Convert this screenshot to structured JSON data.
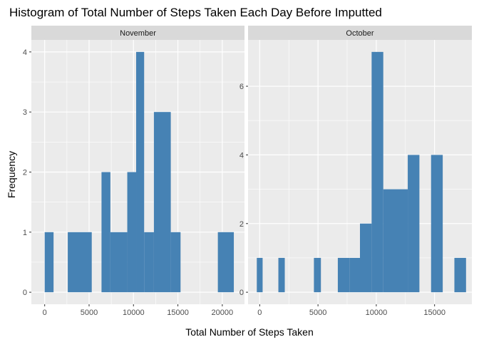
{
  "chart_data": {
    "type": "bar",
    "title": "Histogram of Total Number of Steps Taken Each Day Before Imputted",
    "xlabel": "Total Number of Steps Taken",
    "ylabel": "Frequency",
    "bar_color": "#4682B4",
    "panel_bg": "#EBEBEB",
    "strip_bg": "#D9D9D9",
    "grid_color": "#FFFFFF",
    "grid": true,
    "legend": "none",
    "panels": [
      {
        "name": "November",
        "xlim": [
          -1500,
          22500
        ],
        "ylim": [
          -0.2,
          4.2
        ],
        "x_ticks": [
          0,
          5000,
          10000,
          15000,
          20000
        ],
        "y_ticks": [
          0,
          1,
          2,
          3,
          4
        ],
        "bins": [
          {
            "x0": 0,
            "x1": 1000,
            "count": 1
          },
          {
            "x0": 2600,
            "x1": 5300,
            "count": 1
          },
          {
            "x0": 6400,
            "x1": 7400,
            "count": 2
          },
          {
            "x0": 7400,
            "x1": 9300,
            "count": 1
          },
          {
            "x0": 9300,
            "x1": 10300,
            "count": 2
          },
          {
            "x0": 10300,
            "x1": 11200,
            "count": 4
          },
          {
            "x0": 11200,
            "x1": 12300,
            "count": 1
          },
          {
            "x0": 12300,
            "x1": 14200,
            "count": 3
          },
          {
            "x0": 14200,
            "x1": 15300,
            "count": 1
          },
          {
            "x0": 19500,
            "x1": 21300,
            "count": 1
          }
        ]
      },
      {
        "name": "October",
        "xlim": [
          -1000,
          18200
        ],
        "ylim": [
          -0.35,
          7.35
        ],
        "x_ticks": [
          0,
          5000,
          10000,
          15000
        ],
        "y_ticks": [
          0,
          2,
          4,
          6
        ],
        "bins": [
          {
            "x0": -250,
            "x1": 250,
            "count": 1
          },
          {
            "x0": 1600,
            "x1": 2150,
            "count": 1
          },
          {
            "x0": 4650,
            "x1": 5250,
            "count": 1
          },
          {
            "x0": 6700,
            "x1": 7700,
            "count": 1
          },
          {
            "x0": 7700,
            "x1": 8600,
            "count": 1
          },
          {
            "x0": 8600,
            "x1": 9600,
            "count": 2
          },
          {
            "x0": 9600,
            "x1": 10600,
            "count": 7
          },
          {
            "x0": 10600,
            "x1": 12700,
            "count": 3
          },
          {
            "x0": 12700,
            "x1": 13700,
            "count": 4
          },
          {
            "x0": 14700,
            "x1": 15700,
            "count": 4
          },
          {
            "x0": 16700,
            "x1": 17700,
            "count": 1
          }
        ]
      }
    ]
  }
}
